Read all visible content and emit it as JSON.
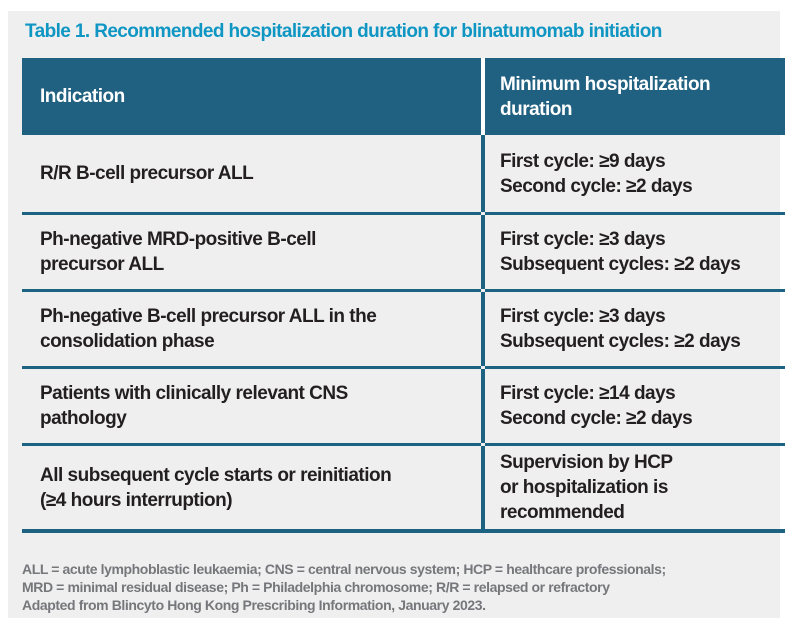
{
  "title": "Table 1. Recommended hospitalization duration for blinatumomab initiation",
  "table": {
    "header": {
      "indication": "Indication",
      "duration_lines": [
        "Minimum hospitalization",
        "duration"
      ]
    },
    "rows": [
      {
        "indication_lines": [
          "R/R B-cell precursor ALL"
        ],
        "duration_lines": [
          "First cycle: ≥9 days",
          "Second cycle: ≥2 days"
        ]
      },
      {
        "indication_lines": [
          "Ph-negative MRD-positive B-cell",
          "precursor ALL"
        ],
        "duration_lines": [
          "First cycle: ≥3 days",
          "Subsequent cycles: ≥2 days"
        ]
      },
      {
        "indication_lines": [
          "Ph-negative B-cell precursor ALL in the",
          "consolidation phase"
        ],
        "duration_lines": [
          "First cycle: ≥3 days",
          "Subsequent cycles: ≥2 days"
        ]
      },
      {
        "indication_lines": [
          "Patients with clinically relevant CNS",
          "pathology"
        ],
        "duration_lines": [
          "First cycle: ≥14 days",
          "Second cycle: ≥2 days"
        ]
      },
      {
        "indication_lines": [
          "All subsequent cycle starts or reinitiation",
          "(≥4 hours interruption)"
        ],
        "duration_lines": [
          "Supervision by HCP",
          "or hospitalization is",
          "recommended"
        ]
      }
    ]
  },
  "footnotes": {
    "lines": [
      "ALL = acute lymphoblastic leukaemia; CNS = central nervous system; HCP = healthcare professionals;",
      "MRD = minimal residual disease; Ph = Philadelphia chromosome; R/R = relapsed or refractory",
      "Adapted from Blincyto Hong Kong Prescribing Information, January 2023."
    ]
  },
  "colors": {
    "header_bg": "#206080",
    "divider_teal": "#1c6282",
    "title_blue": "#0f96c3",
    "panel_bg": "#efeff0",
    "body_text": "#231f20",
    "header_text": "#ffffff",
    "footnote_text": "#76777a",
    "page_bg": "#ffffff"
  }
}
